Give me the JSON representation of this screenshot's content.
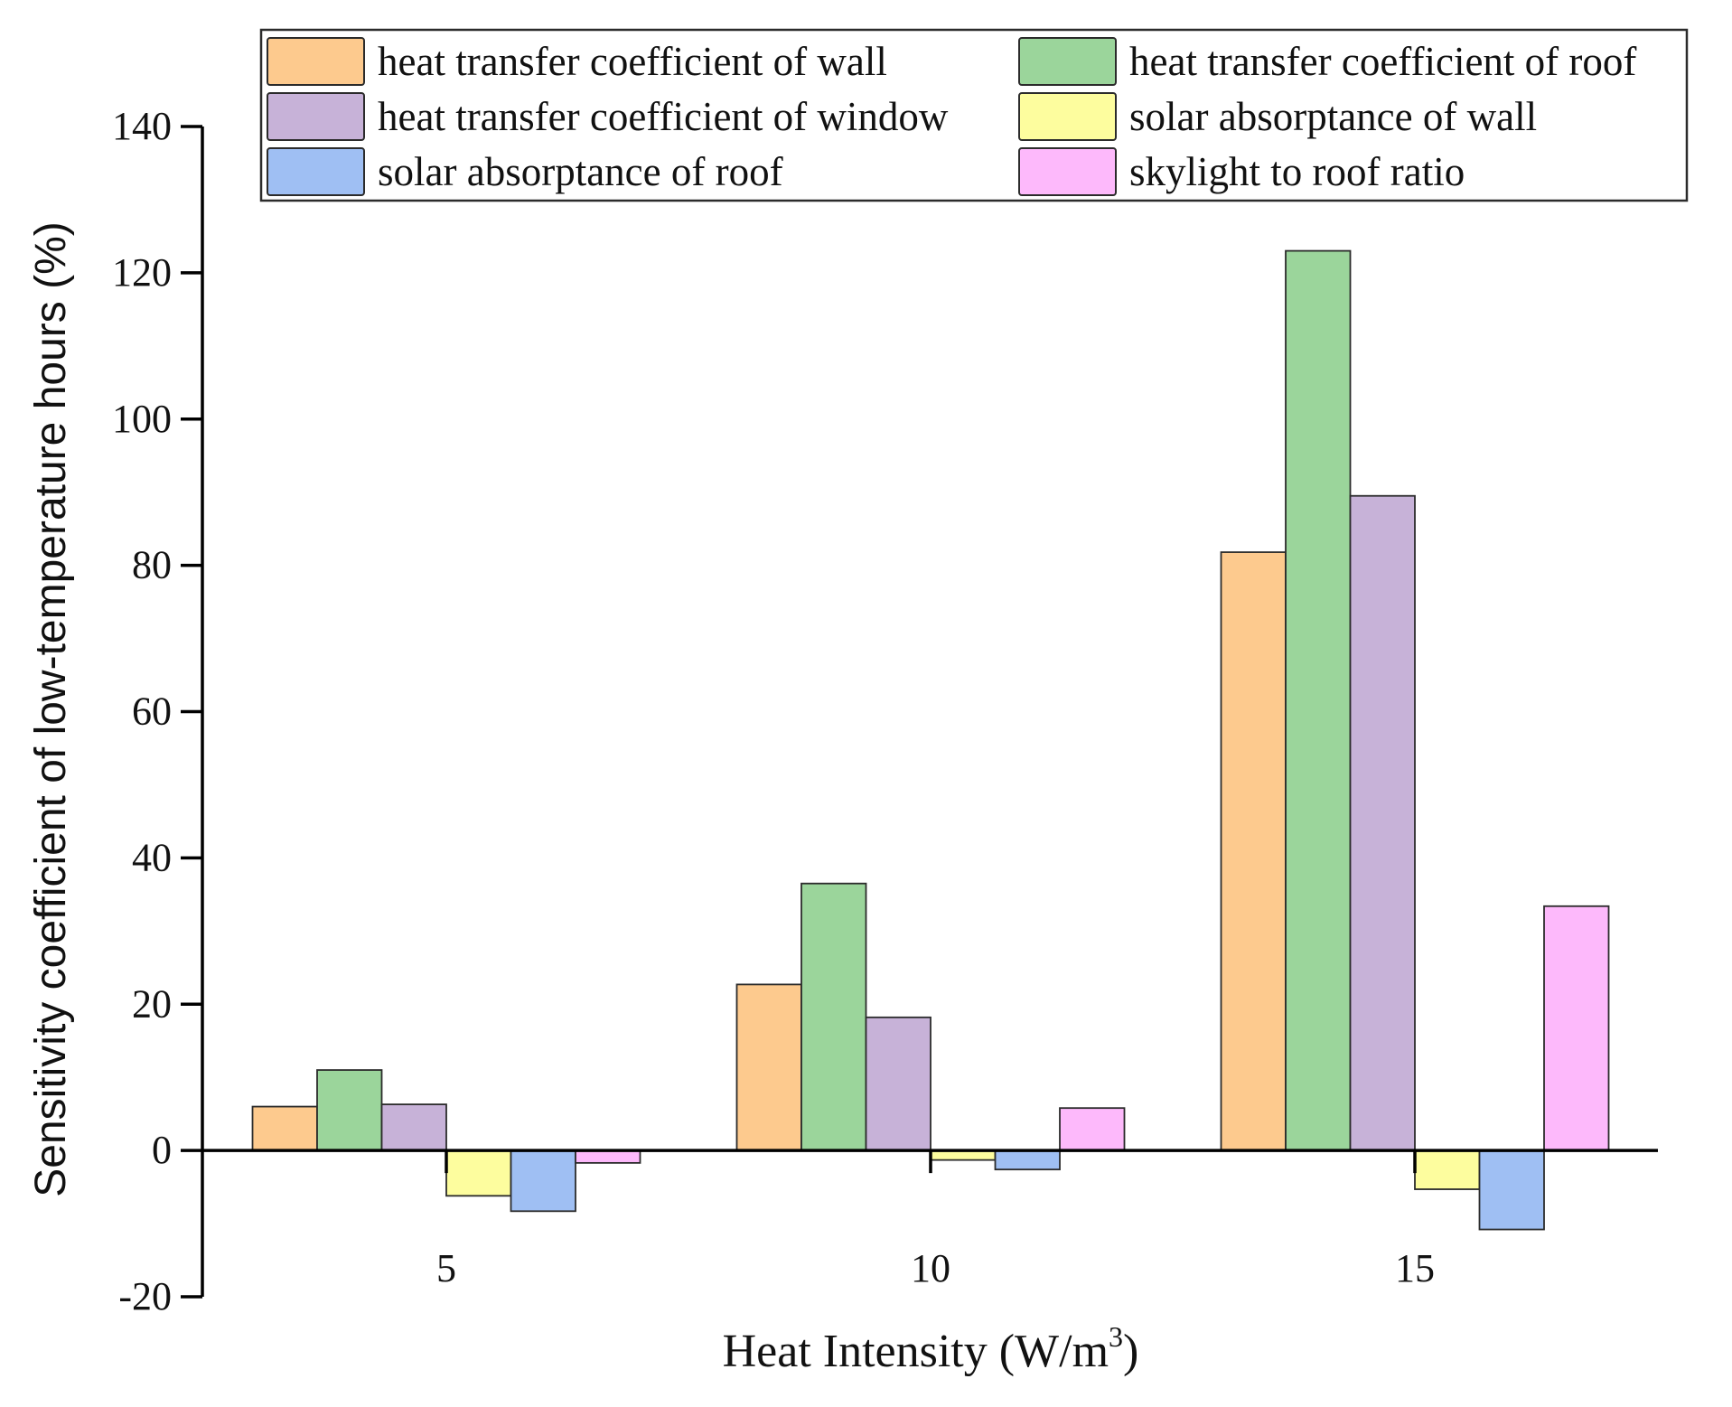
{
  "chart_data": {
    "type": "bar",
    "title": "",
    "xlabel": "Heat Intensity (W/m",
    "xlabel_sup": "3",
    "xlabel_end": ")",
    "ylabel": "Sensitivity coefficient of low-temperature hours (%)",
    "ylim": [
      -20,
      140
    ],
    "yticks": [
      -20,
      0,
      20,
      40,
      60,
      80,
      100,
      120,
      140
    ],
    "categories": [
      "5",
      "10",
      "15"
    ],
    "grid": false,
    "legend_position": "top",
    "series": [
      {
        "name": "heat transfer coefficient of wall",
        "color": "#fdca8e",
        "values": [
          6,
          22.7,
          81.8
        ]
      },
      {
        "name": "heat transfer coefficient of roof",
        "color": "#9bd59b",
        "values": [
          11,
          36.5,
          123
        ]
      },
      {
        "name": "heat transfer coefficient of window",
        "color": "#c7b2d8",
        "values": [
          6.3,
          18.2,
          89.5
        ]
      },
      {
        "name": "solar absorptance of wall",
        "color": "#fdfd9e",
        "values": [
          -6.2,
          -1.3,
          -5.3
        ]
      },
      {
        "name": "solar absorptance of roof",
        "color": "#9fbff3",
        "values": [
          -8.3,
          -2.6,
          -10.8
        ]
      },
      {
        "name": "skylight to roof ratio",
        "color": "#fdb9fb",
        "values": [
          -1.7,
          5.8,
          33.4
        ]
      }
    ]
  }
}
